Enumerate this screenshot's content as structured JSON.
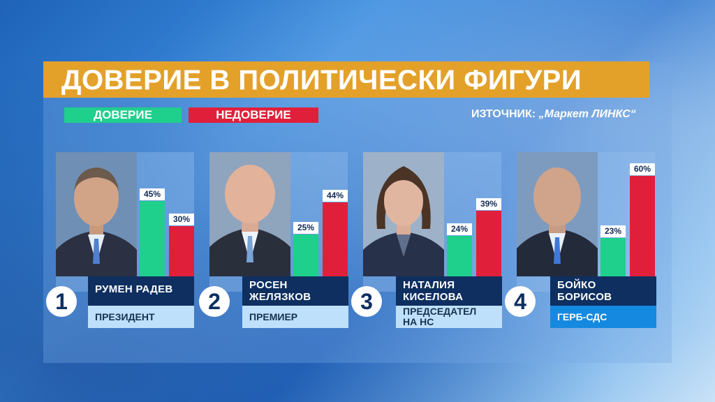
{
  "title": "ДОВЕРИЕ В ПОЛИТИЧЕСКИ ФИГУРИ",
  "legend": {
    "trust": "ДОВЕРИЕ",
    "distrust": "НЕДОВЕРИЕ"
  },
  "source": {
    "label": "ИЗТОЧНИК:",
    "value": "„Маркет ЛИНКС“"
  },
  "colors": {
    "trust": "#1fcf8c",
    "distrust": "#e0203a",
    "title_bg": "#e3a12a",
    "name_bg": "#0e2f60"
  },
  "people": [
    {
      "rank": "1",
      "name_line1": "РУМЕН РАДЕВ",
      "name_line2": "",
      "role_line1": "ПРЕЗИДЕНТ",
      "role_line2": "",
      "trust_label": "45%",
      "distrust_label": "30%"
    },
    {
      "rank": "2",
      "name_line1": "РОСЕН",
      "name_line2": "ЖЕЛЯЗКОВ",
      "role_line1": "ПРЕМИЕР",
      "role_line2": "",
      "trust_label": "25%",
      "distrust_label": "44%"
    },
    {
      "rank": "3",
      "name_line1": "НАТАЛИЯ",
      "name_line2": "КИСЕЛОВА",
      "role_line1": "ПРЕДСЕДАТЕЛ",
      "role_line2": "НА НС",
      "trust_label": "24%",
      "distrust_label": "39%"
    },
    {
      "rank": "4",
      "name_line1": "БОЙКО",
      "name_line2": "БОРИСОВ",
      "role_line1": "ГЕРБ-СДС",
      "role_line2": "",
      "trust_label": "23%",
      "distrust_label": "60%"
    }
  ],
  "chart_data": {
    "type": "bar",
    "title": "ДОВЕРИЕ В ПОЛИТИЧЕСКИ ФИГУРИ",
    "categories": [
      "РУМЕН РАДЕВ",
      "РОСЕН ЖЕЛЯЗКОВ",
      "НАТАЛИЯ КИСЕЛОВА",
      "БОЙКО БОРИСОВ"
    ],
    "series": [
      {
        "name": "ДОВЕРИЕ",
        "values": [
          45,
          25,
          24,
          23
        ]
      },
      {
        "name": "НЕДОВЕРИЕ",
        "values": [
          30,
          44,
          39,
          60
        ]
      }
    ],
    "ylim": [
      0,
      60
    ],
    "xlabel": "",
    "ylabel": ""
  }
}
